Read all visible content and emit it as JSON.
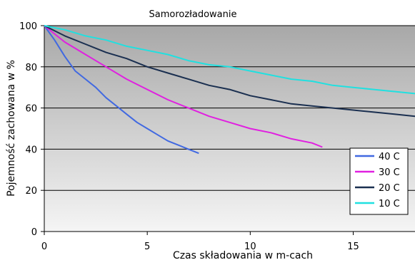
{
  "chart_data": {
    "type": "line",
    "title": "Samorozładowanie",
    "xlabel": "Czas składowania w m-cach",
    "ylabel": "Pojemność zachowana w %",
    "xlim": [
      0,
      18
    ],
    "ylim": [
      0,
      100
    ],
    "x_ticks": [
      "0",
      "5",
      "10",
      "15"
    ],
    "y_ticks": [
      "0",
      "20",
      "40",
      "60",
      "80",
      "100"
    ],
    "grid": "horizontal",
    "legend_position": "bottom-right",
    "series": [
      {
        "name": "40 C",
        "color": "#4169E1",
        "points": [
          [
            0,
            100
          ],
          [
            0.5,
            93
          ],
          [
            1,
            85
          ],
          [
            1.5,
            78
          ],
          [
            2,
            74
          ],
          [
            2.5,
            70
          ],
          [
            3,
            65
          ],
          [
            3.5,
            61
          ],
          [
            4,
            57
          ],
          [
            4.5,
            53
          ],
          [
            5,
            50
          ],
          [
            5.5,
            47
          ],
          [
            6,
            44
          ],
          [
            6.5,
            42
          ],
          [
            7,
            40
          ],
          [
            7.5,
            38
          ]
        ]
      },
      {
        "name": "30 C",
        "color": "#E020E0",
        "points": [
          [
            0,
            100
          ],
          [
            1,
            92
          ],
          [
            2,
            86
          ],
          [
            3,
            80
          ],
          [
            4,
            74
          ],
          [
            5,
            69
          ],
          [
            6,
            64
          ],
          [
            7,
            60
          ],
          [
            8,
            56
          ],
          [
            9,
            53
          ],
          [
            10,
            50
          ],
          [
            11,
            48
          ],
          [
            12,
            45
          ],
          [
            13,
            43
          ],
          [
            13.5,
            41
          ]
        ]
      },
      {
        "name": "20 C",
        "color": "#1A2F50",
        "points": [
          [
            0,
            100
          ],
          [
            1,
            95
          ],
          [
            2,
            91
          ],
          [
            3,
            87
          ],
          [
            4,
            84
          ],
          [
            5,
            80
          ],
          [
            6,
            77
          ],
          [
            7,
            74
          ],
          [
            8,
            71
          ],
          [
            9,
            69
          ],
          [
            10,
            66
          ],
          [
            11,
            64
          ],
          [
            12,
            62
          ],
          [
            13,
            61
          ],
          [
            14,
            60
          ],
          [
            15,
            59
          ],
          [
            16,
            58
          ],
          [
            17,
            57
          ],
          [
            18,
            56
          ]
        ]
      },
      {
        "name": "10 C",
        "color": "#20E0E0",
        "points": [
          [
            0,
            100
          ],
          [
            1,
            98
          ],
          [
            2,
            95
          ],
          [
            3,
            93
          ],
          [
            4,
            90
          ],
          [
            5,
            88
          ],
          [
            6,
            86
          ],
          [
            7,
            83
          ],
          [
            8,
            81
          ],
          [
            9,
            80
          ],
          [
            10,
            78
          ],
          [
            11,
            76
          ],
          [
            12,
            74
          ],
          [
            13,
            73
          ],
          [
            14,
            71
          ],
          [
            15,
            70
          ],
          [
            16,
            69
          ],
          [
            17,
            68
          ],
          [
            18,
            67
          ]
        ]
      }
    ],
    "colors": {
      "plot_bg_top": "#a8a8a8",
      "plot_bg_bottom": "#f5f5f5",
      "gridline": "#000000"
    }
  }
}
